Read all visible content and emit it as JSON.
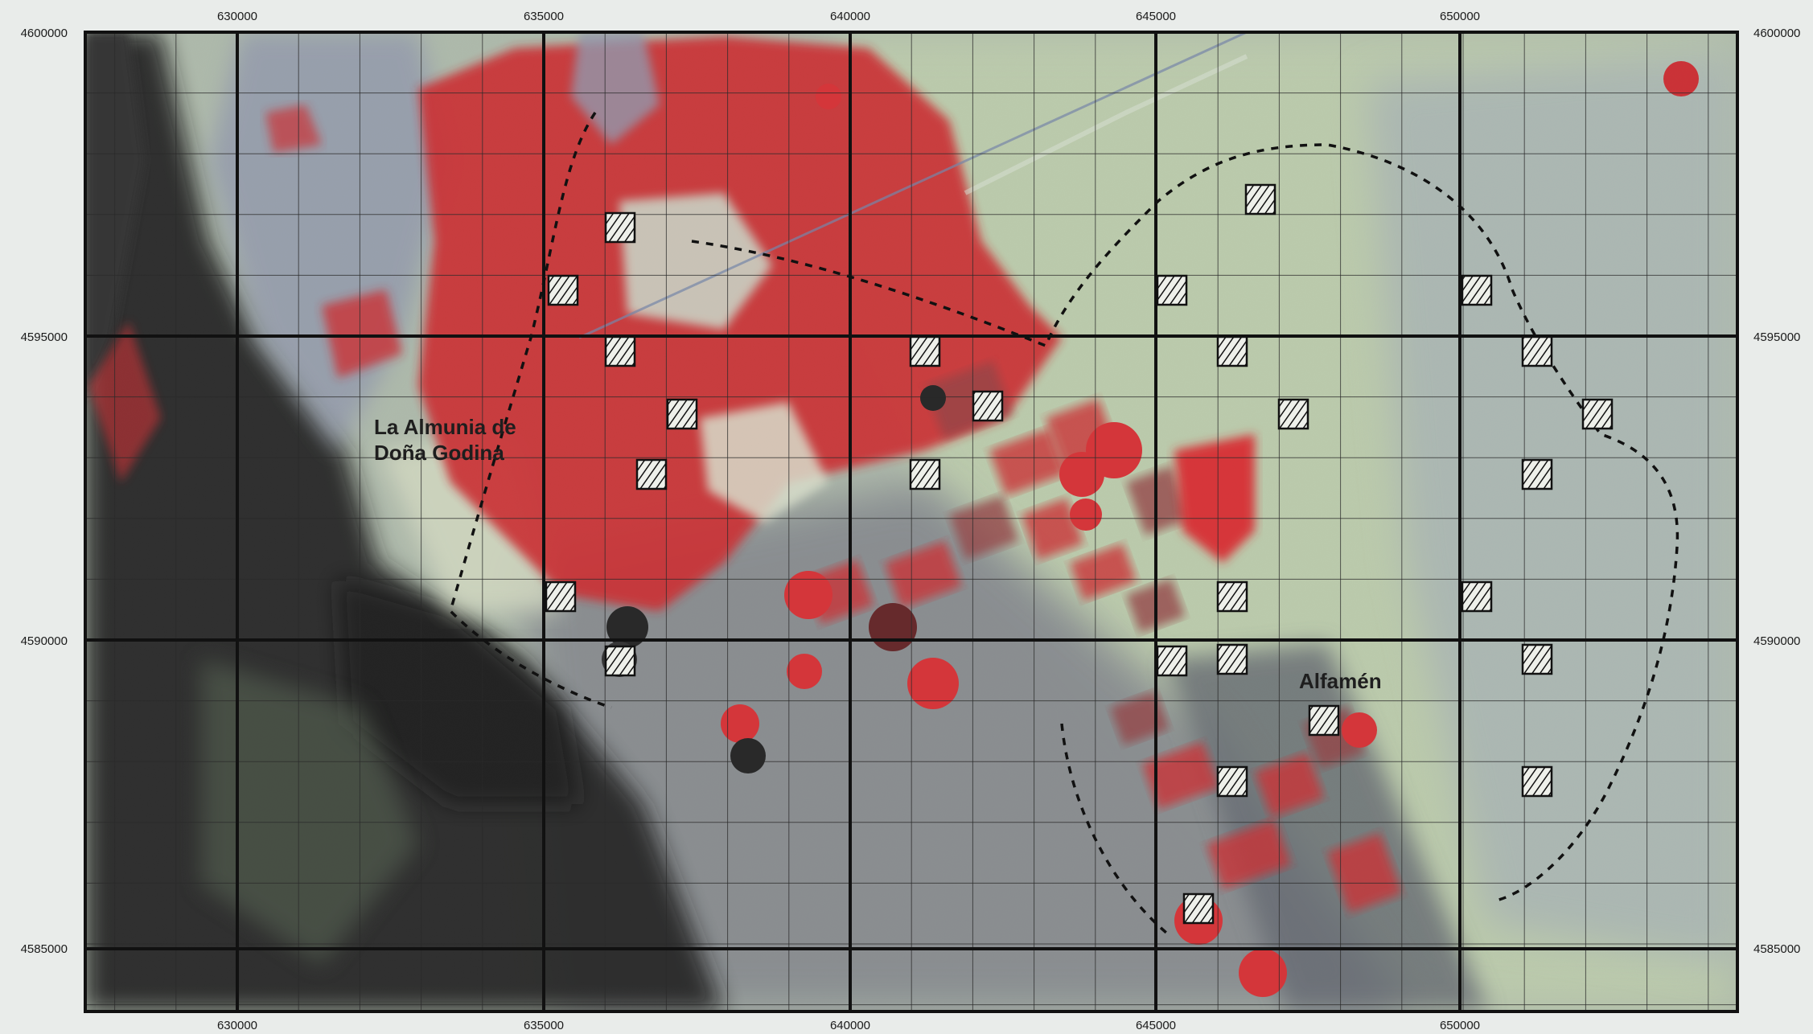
{
  "map": {
    "x_axis": {
      "ticks": [
        "630000",
        "635000",
        "640000",
        "645000",
        "650000"
      ]
    },
    "y_axis": {
      "ticks": [
        "4600000",
        "4595000",
        "4590000",
        "4585000"
      ]
    },
    "places": [
      {
        "id": "almunia",
        "lines": [
          "La Almunia de",
          "Doña Godina"
        ]
      },
      {
        "id": "alfamen",
        "lines": [
          "Alfamén"
        ]
      }
    ],
    "colors": {
      "background": "#e9ecea",
      "frame": "#111111",
      "major_grid": "#111111",
      "minor_grid": "#2a2a2a",
      "irrigated_red": "#c8262b",
      "dark_relief": "#1c1c1e",
      "pale_green": "#b9c9a8",
      "grey_blue": "#9aa3b4"
    },
    "features": {
      "sample_plots_count": 27,
      "study_area_boundary": "dashed"
    }
  }
}
